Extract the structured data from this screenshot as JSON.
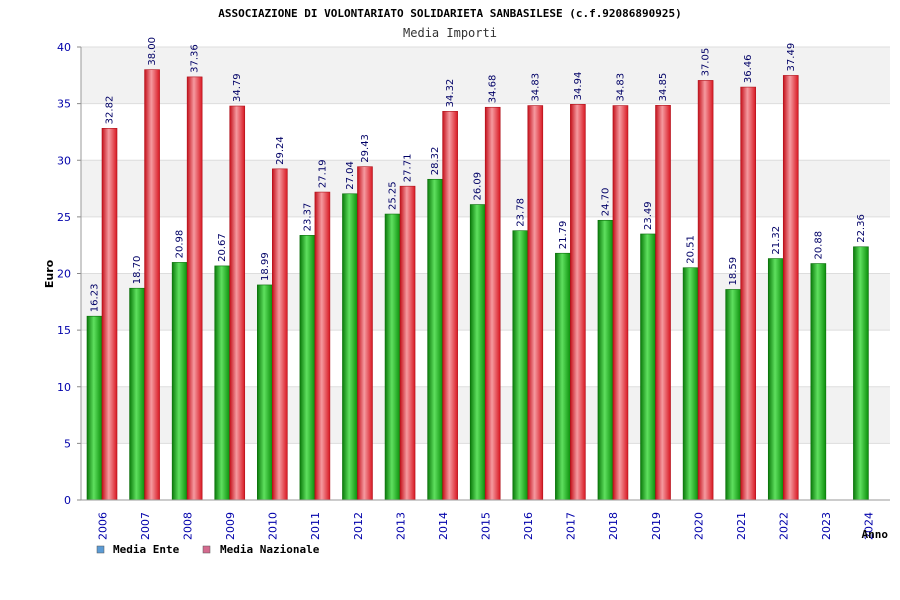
{
  "chart_data": {
    "type": "bar",
    "title": "ASSOCIAZIONE DI VOLONTARIATO SOLIDARIETA SANBASILESE (c.f.92086890925)",
    "subtitle": "Media Importi",
    "ylabel": "Euro",
    "xlabel": "Anno",
    "ylim": [
      0,
      40
    ],
    "yticks": [
      0,
      5,
      10,
      15,
      20,
      25,
      30,
      35,
      40
    ],
    "categories": [
      "2006",
      "2007",
      "2008",
      "2009",
      "2010",
      "2011",
      "2012",
      "2013",
      "2014",
      "2015",
      "2016",
      "2017",
      "2018",
      "2019",
      "2020",
      "2021",
      "2022",
      "2023",
      "2024"
    ],
    "series": [
      {
        "name": "Media Ente",
        "legend_color": "#5b9bd5",
        "bar_color": "#1aa31a",
        "values": [
          16.23,
          18.7,
          20.98,
          20.67,
          18.99,
          23.37,
          27.04,
          25.25,
          28.32,
          26.09,
          23.78,
          21.79,
          24.7,
          23.49,
          20.51,
          18.59,
          21.32,
          20.88,
          22.36
        ],
        "labels": [
          "16.23",
          "18.70",
          "20.98",
          "20.67",
          "18.99",
          "23.37",
          "27.04",
          "25.25",
          "28.32",
          "26.09",
          "23.78",
          "21.79",
          "24.70",
          "23.49",
          "20.51",
          "18.59",
          "21.32",
          "20.88",
          "22.36"
        ]
      },
      {
        "name": "Media Nazionale",
        "legend_color": "#d46a8e",
        "bar_color": "#e8202c",
        "values": [
          32.82,
          38.0,
          37.36,
          34.79,
          29.24,
          27.19,
          29.43,
          27.71,
          34.32,
          34.68,
          34.83,
          34.94,
          34.83,
          34.85,
          37.05,
          36.46,
          37.49,
          null,
          null
        ],
        "labels": [
          "32.82",
          "38.00",
          "37.36",
          "34.79",
          "29.24",
          "27.19",
          "29.43",
          "27.71",
          "34.32",
          "34.68",
          "34.83",
          "34.94",
          "34.83",
          "34.85",
          "37.05",
          "36.46",
          "37.49",
          null,
          null
        ]
      }
    ],
    "grid": true,
    "legend_position": "bottom-left"
  }
}
